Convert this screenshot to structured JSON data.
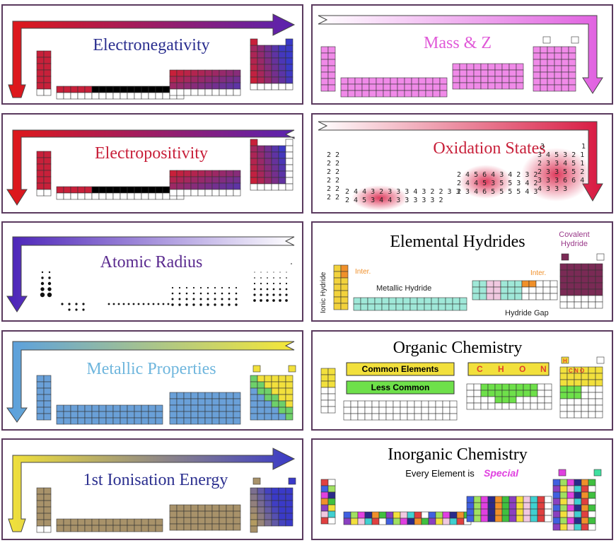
{
  "panels": {
    "electronegativity": {
      "title": "Electronegativity",
      "title_color": "#2b2f8f",
      "fill": "#c8203a",
      "accent": "#3a3ac8"
    },
    "electropositivity": {
      "title": "Electropositivity",
      "title_color": "#c8203a",
      "fill": "#c8203a",
      "accent": "#3a3ac8"
    },
    "atomic_radius": {
      "title": "Atomic Radius",
      "title_color": "#5a2a8f"
    },
    "metallic": {
      "title": "Metallic Properties",
      "title_color": "#6fb6dd",
      "fill": "#6aa0d8",
      "accent": "#f2e03c"
    },
    "ionisation": {
      "title": "1st Ionisation Energy",
      "title_color": "#2b2f8f",
      "fill": "#a8926a",
      "accent": "#3a3ac8"
    },
    "mass_z": {
      "title": "Mass & Z",
      "title_color": "#e05ad8",
      "fill": "#f08ae8"
    },
    "oxidation": {
      "title": "Oxidation States",
      "title_color": "#c8203a",
      "top_labels": [
        "3",
        "1"
      ],
      "col1": [
        "2 2",
        "2 2",
        "2 2",
        "2 2",
        "2 2",
        "2 2"
      ],
      "right_rows": [
        "3 4 5 3 2 1",
        "2 3 3 4 5 1",
        "2 3 3 5 5 2",
        "3 3 3 6 6 4",
        "4 3 3 3"
      ],
      "mid_rows": [
        "2 4 5 6 4 3 4 2 3 2",
        "2 4 4 5 3 5 5 3 4 2",
        "2 3 4 6 5 5 5 5 4 3"
      ],
      "bottom_rows": [
        "2 4 4 3 2 3 3 3 4 3 2 2 3 3",
        "2 4 5 3 4 4 3 3 3 3 3 2"
      ]
    },
    "hydrides": {
      "title": "Elemental Hydrides",
      "covalent": "Covalent Hydride",
      "ionic": "Ionic Hydride",
      "inter_left": "Inter.",
      "inter_right": "Inter.",
      "metallic": "Metallic Hydride",
      "gap": "Hydride Gap",
      "colors": {
        "ionic": "#f2d23c",
        "metallic": "#9fe8d8",
        "covalent": "#7a2a55",
        "inter": "#f0902a"
      }
    },
    "organic": {
      "title": "Organic Chemistry",
      "common": "Common Elements",
      "less": "Less Common",
      "chon": [
        "C",
        "H",
        "O",
        "N"
      ],
      "h_label": "H",
      "cno_label": "C N O",
      "colors": {
        "common": "#f2e03c",
        "less": "#6ee04a"
      }
    },
    "inorganic": {
      "title": "Inorganic Chemistry",
      "subtitle": "Every Element is",
      "special": "Special"
    }
  }
}
